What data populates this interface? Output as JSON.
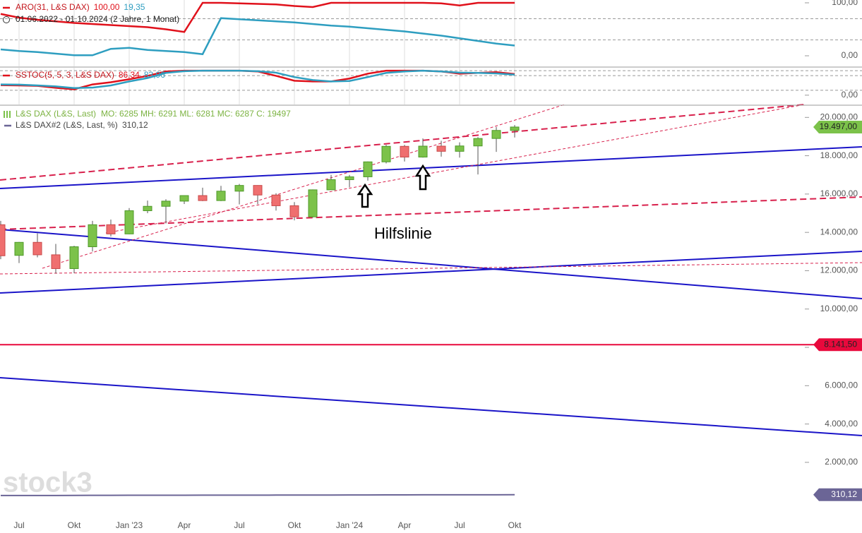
{
  "chart_data": [
    {
      "type": "line",
      "legend": "ARO(31, L&S DAX)",
      "subtitle": "01.06.2022 - 01.10.2024  (2 Jahre, 1 Monat)",
      "ylim": [
        -20,
        105.3
      ],
      "yticks": [
        {
          "value": 100,
          "label": "100,00"
        },
        {
          "value": 0,
          "label": "0,00"
        }
      ],
      "hlines": [
        70,
        30
      ],
      "series": [
        {
          "color": "#e0111b",
          "last_label": "100,00",
          "values": [
            79,
            72,
            68,
            65,
            62,
            60,
            58,
            56,
            54,
            50,
            45,
            100,
            100,
            99,
            98,
            97,
            94,
            92,
            100,
            100,
            100,
            100,
            100,
            100,
            99,
            95,
            100,
            100,
            100
          ]
        },
        {
          "color": "#2e9ec0",
          "last_label": "19,35",
          "values": [
            12,
            9,
            7,
            4,
            1,
            1,
            13,
            15,
            11,
            9,
            7,
            3,
            71,
            69,
            67,
            65,
            63,
            60,
            57,
            55,
            52,
            49,
            46,
            42,
            38,
            33,
            28,
            23,
            19.35
          ]
        }
      ]
    },
    {
      "type": "line",
      "legend": "SSTOC(5, 5, 3, L&S DAX)",
      "ylim": [
        -38,
        112
      ],
      "yticks": [
        {
          "value": 0,
          "label": "0,00"
        }
      ],
      "hlines": [
        100,
        80,
        20
      ],
      "series": [
        {
          "color": "#e0111b",
          "last_label": "86,34",
          "values": [
            41,
            40,
            38,
            30,
            24,
            44,
            53,
            65,
            79,
            97,
            100,
            100,
            100,
            100,
            97,
            79,
            59,
            56,
            56,
            68,
            88,
            100,
            100,
            100,
            97,
            88,
            91,
            94,
            86.34
          ]
        },
        {
          "color": "#2e9ec0",
          "last_label": "83,96",
          "values": [
            44,
            43,
            40,
            36,
            29,
            31,
            40,
            56,
            70,
            91,
            98,
            100,
            100,
            100,
            98,
            92,
            74,
            62,
            56,
            58,
            74,
            91,
            97,
            100,
            97,
            92,
            91,
            89,
            83.96
          ]
        }
      ]
    },
    {
      "type": "candlestick",
      "watermark": "stock3",
      "annotation": "Hilfslinie",
      "categories": [
        null,
        "Jul",
        null,
        null,
        "Okt",
        null,
        null,
        "Jan '23",
        null,
        null,
        "Apr",
        null,
        null,
        "Jul",
        null,
        null,
        "Okt",
        null,
        null,
        "Jan '24",
        null,
        null,
        "Apr",
        null,
        null,
        "Jul",
        null,
        null,
        "Okt"
      ],
      "ylim": [
        -950,
        20600
      ],
      "yticks": [
        {
          "value": 2000,
          "label": "2.000,00"
        },
        {
          "value": 4000,
          "label": "4.000,00"
        },
        {
          "value": 6000,
          "label": "6.000,00"
        },
        {
          "value": 8000,
          "label": "8.000,00"
        },
        {
          "value": 10000,
          "label": "10.000,00"
        },
        {
          "value": 12000,
          "label": "12.000,00"
        },
        {
          "value": 14000,
          "label": "14.000,00"
        },
        {
          "value": 16000,
          "label": "16.000,00"
        },
        {
          "value": 18000,
          "label": "18.000,00"
        },
        {
          "value": 20000,
          "label": "20.000,00"
        }
      ],
      "hline": {
        "value": 8141.5,
        "label": "8.141,50",
        "color": "#e8093c"
      },
      "candles": {
        "name": "L&S DAX (L&S, Last)",
        "info": "MO: 6285 MH: 6291 ML: 6281 MC: 6287  C: 19497",
        "last_label": "19.497,00",
        "up_color": "#7cc24a",
        "down_color": "#ef6f6f",
        "open": [
          14400,
          12800,
          13480,
          12830,
          12110,
          13250,
          14400,
          13920,
          15130,
          15360,
          15630,
          15920,
          15660,
          16150,
          16450,
          15950,
          15390,
          14810,
          16220,
          16750,
          16900,
          17680,
          18490,
          17930,
          18500,
          18230,
          18510,
          18900,
          19320
        ],
        "high": [
          14600,
          13500,
          13950,
          13400,
          13300,
          14600,
          14670,
          15270,
          15660,
          15730,
          15920,
          16330,
          16430,
          16530,
          16460,
          16040,
          15580,
          16240,
          17000,
          17000,
          17700,
          18570,
          18570,
          18900,
          18780,
          18700,
          18970,
          19500,
          19600
        ],
        "low": [
          12600,
          12400,
          12700,
          11860,
          11870,
          13000,
          13790,
          13900,
          15000,
          14460,
          15480,
          15630,
          15630,
          15460,
          15470,
          15140,
          14630,
          14770,
          16220,
          16350,
          16700,
          17600,
          17700,
          17900,
          17950,
          17900,
          17020,
          18200,
          18950
        ],
        "close": [
          12780,
          13480,
          12830,
          12110,
          13250,
          14400,
          13920,
          15130,
          15360,
          15630,
          15920,
          15660,
          16150,
          16450,
          15950,
          15390,
          14810,
          16220,
          16750,
          16900,
          17680,
          18490,
          17930,
          18500,
          18230,
          18510,
          18900,
          19320,
          19497
        ]
      },
      "series": [
        {
          "name": "L&S DAX#2 (L&S, Last, %)",
          "last_label": "310,12",
          "color": "#6b6596",
          "values": [
            270,
            268,
            272,
            270,
            275,
            278,
            280,
            282,
            284,
            285,
            286,
            287,
            288,
            289,
            290,
            291,
            292,
            293,
            295,
            297,
            300,
            302,
            303,
            305,
            306,
            307,
            308,
            309,
            310.12
          ]
        }
      ]
    }
  ]
}
